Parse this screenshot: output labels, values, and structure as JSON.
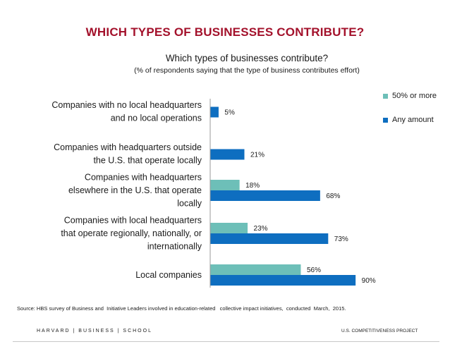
{
  "slide": {
    "title": "WHICH TYPES OF BUSINESSES CONTRIBUTE?",
    "source": "Source: HBS survey of Business and  Initiative Leaders involved in education-related   collective impact initiatives,  conducted  March,  2015.",
    "footer_left": "HARVARD | BUSINESS | SCHOOL",
    "footer_right": "U.S. COMPETITIVENESS  PROJECT",
    "colors": {
      "title": "#a3112b",
      "fifty_or_more": "#6dbfb8",
      "any_amount": "#0e6ec0"
    }
  },
  "chart_data": {
    "type": "bar",
    "orientation": "horizontal",
    "title": "Which types of businesses contribute?",
    "subtitle": "(% of respondents saying that the type of business contributes effort)",
    "categories": [
      [
        "Companies with no local headquarters",
        "and no local operations"
      ],
      [
        "Companies with headquarters outside",
        "the U.S. that operate locally"
      ],
      [
        "Companies with headquarters",
        "elsewhere in the U.S. that operate",
        "locally"
      ],
      [
        "Companies with local headquarters",
        "that operate regionally, nationally, or",
        "internationally"
      ],
      [
        "Local companies"
      ]
    ],
    "series": [
      {
        "name": "50% or more",
        "color": "#6dbfb8",
        "values": [
          null,
          null,
          18,
          23,
          56
        ]
      },
      {
        "name": "Any amount",
        "color": "#0e6ec0",
        "values": [
          5,
          21,
          68,
          73,
          90
        ]
      }
    ],
    "value_suffix": "%",
    "xlim": [
      0,
      100
    ],
    "legend": "right"
  }
}
